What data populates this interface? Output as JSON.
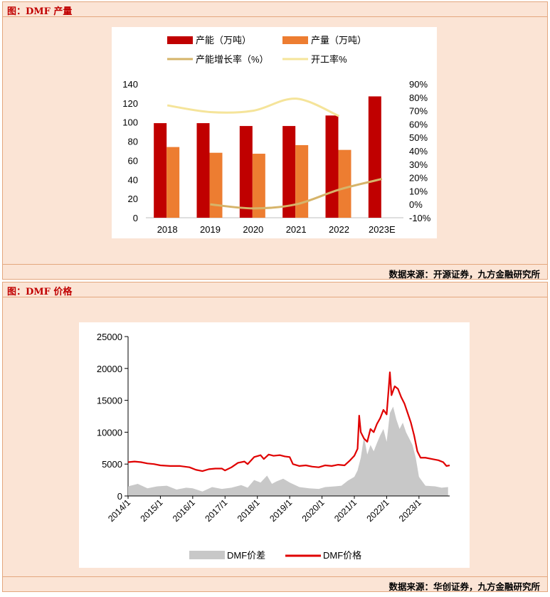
{
  "panels": [
    {
      "title": "图：DMF 产量",
      "source": "数据来源：开源证券，九方金融研究所"
    },
    {
      "title": "图：DMF 价格",
      "source": "数据来源：华创证券，九方金融研究所"
    }
  ],
  "chart_data": [
    {
      "type": "bar",
      "categories": [
        "2018",
        "2019",
        "2020",
        "2021",
        "2022",
        "2023E"
      ],
      "series": [
        {
          "name": "产能（万吨）",
          "kind": "bar",
          "axis": "left",
          "color": "#c00000",
          "values": [
            99,
            99,
            96,
            96,
            107,
            127
          ]
        },
        {
          "name": "产量（万吨）",
          "kind": "bar",
          "axis": "left",
          "color": "#ed7d31",
          "values": [
            74,
            68,
            67,
            76,
            71,
            null
          ]
        },
        {
          "name": "产能增长率（%）",
          "kind": "line",
          "axis": "right",
          "color": "#d6b46a",
          "values": [
            null,
            0,
            -3,
            0,
            11,
            19
          ]
        },
        {
          "name": "开工率%",
          "kind": "line",
          "axis": "right",
          "color": "#f5e49a",
          "values": [
            74,
            69,
            70,
            79,
            66,
            null
          ]
        }
      ],
      "left_axis": {
        "min": 0,
        "max": 140,
        "ticks": [
          "0",
          "20",
          "40",
          "60",
          "80",
          "100",
          "120",
          "140"
        ]
      },
      "right_axis": {
        "min": -10,
        "max": 90,
        "ticks": [
          "-10%",
          "0%",
          "10%",
          "20%",
          "30%",
          "40%",
          "50%",
          "60%",
          "70%",
          "80%",
          "90%"
        ]
      },
      "grid": false,
      "legend": "top"
    },
    {
      "type": "area",
      "x_ticks": [
        "2014/1",
        "2015/1",
        "2016/1",
        "2017/1",
        "2018/1",
        "2019/1",
        "2020/1",
        "2021/1",
        "2022/1",
        "2023/1"
      ],
      "y_axis": {
        "min": 0,
        "max": 25000,
        "ticks": [
          "0",
          "5000",
          "10000",
          "15000",
          "20000",
          "25000"
        ]
      },
      "series": [
        {
          "name": "DMF价差",
          "kind": "area",
          "color": "#c8c8c8",
          "points": [
            [
              2014.0,
              1500
            ],
            [
              2014.3,
              1900
            ],
            [
              2014.6,
              1200
            ],
            [
              2014.9,
              1500
            ],
            [
              2015.2,
              1600
            ],
            [
              2015.5,
              1000
            ],
            [
              2015.8,
              1300
            ],
            [
              2016.0,
              1200
            ],
            [
              2016.3,
              700
            ],
            [
              2016.6,
              1400
            ],
            [
              2016.9,
              1100
            ],
            [
              2017.2,
              1300
            ],
            [
              2017.5,
              1700
            ],
            [
              2017.7,
              1300
            ],
            [
              2017.9,
              2500
            ],
            [
              2018.1,
              2100
            ],
            [
              2018.3,
              3200
            ],
            [
              2018.45,
              1900
            ],
            [
              2018.6,
              2300
            ],
            [
              2018.8,
              2700
            ],
            [
              2019.0,
              2100
            ],
            [
              2019.3,
              1400
            ],
            [
              2019.6,
              1200
            ],
            [
              2019.9,
              1100
            ],
            [
              2020.1,
              1400
            ],
            [
              2020.4,
              1500
            ],
            [
              2020.6,
              1600
            ],
            [
              2020.8,
              2400
            ],
            [
              2021.0,
              3000
            ],
            [
              2021.1,
              4000
            ],
            [
              2021.2,
              6000
            ],
            [
              2021.3,
              9300
            ],
            [
              2021.4,
              6500
            ],
            [
              2021.5,
              8000
            ],
            [
              2021.6,
              7000
            ],
            [
              2021.7,
              8300
            ],
            [
              2021.8,
              9500
            ],
            [
              2021.9,
              10500
            ],
            [
              2022.0,
              8500
            ],
            [
              2022.1,
              13000
            ],
            [
              2022.2,
              14000
            ],
            [
              2022.3,
              12000
            ],
            [
              2022.4,
              10500
            ],
            [
              2022.5,
              11500
            ],
            [
              2022.6,
              10000
            ],
            [
              2022.7,
              9000
            ],
            [
              2022.8,
              8000
            ],
            [
              2022.9,
              6000
            ],
            [
              2023.0,
              3000
            ],
            [
              2023.2,
              1600
            ],
            [
              2023.5,
              1500
            ],
            [
              2023.7,
              1300
            ],
            [
              2023.9,
              1400
            ]
          ]
        },
        {
          "name": "DMF价格",
          "kind": "line",
          "color": "#e00000",
          "points": [
            [
              2014.0,
              5300
            ],
            [
              2014.2,
              5400
            ],
            [
              2014.4,
              5300
            ],
            [
              2014.6,
              5100
            ],
            [
              2014.8,
              5000
            ],
            [
              2015.0,
              4800
            ],
            [
              2015.3,
              4700
            ],
            [
              2015.6,
              4700
            ],
            [
              2015.9,
              4500
            ],
            [
              2016.1,
              4100
            ],
            [
              2016.3,
              3900
            ],
            [
              2016.5,
              4200
            ],
            [
              2016.7,
              4300
            ],
            [
              2016.9,
              4300
            ],
            [
              2017.0,
              4000
            ],
            [
              2017.2,
              4500
            ],
            [
              2017.4,
              5200
            ],
            [
              2017.6,
              5400
            ],
            [
              2017.7,
              5000
            ],
            [
              2017.9,
              6100
            ],
            [
              2018.1,
              6400
            ],
            [
              2018.2,
              5800
            ],
            [
              2018.35,
              6500
            ],
            [
              2018.5,
              6300
            ],
            [
              2018.7,
              6400
            ],
            [
              2018.85,
              6200
            ],
            [
              2019.0,
              6100
            ],
            [
              2019.1,
              5000
            ],
            [
              2019.3,
              4700
            ],
            [
              2019.5,
              4800
            ],
            [
              2019.7,
              4600
            ],
            [
              2019.9,
              4500
            ],
            [
              2020.1,
              4800
            ],
            [
              2020.3,
              4700
            ],
            [
              2020.5,
              4900
            ],
            [
              2020.7,
              4800
            ],
            [
              2020.85,
              5500
            ],
            [
              2021.0,
              6300
            ],
            [
              2021.1,
              7400
            ],
            [
              2021.15,
              12600
            ],
            [
              2021.2,
              10000
            ],
            [
              2021.3,
              9000
            ],
            [
              2021.4,
              8500
            ],
            [
              2021.5,
              10500
            ],
            [
              2021.6,
              10000
            ],
            [
              2021.7,
              11300
            ],
            [
              2021.8,
              12200
            ],
            [
              2021.9,
              13500
            ],
            [
              2022.0,
              12800
            ],
            [
              2022.05,
              16000
            ],
            [
              2022.1,
              19400
            ],
            [
              2022.15,
              15800
            ],
            [
              2022.25,
              17200
            ],
            [
              2022.35,
              16800
            ],
            [
              2022.45,
              15500
            ],
            [
              2022.55,
              14500
            ],
            [
              2022.65,
              13000
            ],
            [
              2022.75,
              11500
            ],
            [
              2022.85,
              9500
            ],
            [
              2022.95,
              7000
            ],
            [
              2023.05,
              6000
            ],
            [
              2023.2,
              6000
            ],
            [
              2023.4,
              5800
            ],
            [
              2023.6,
              5600
            ],
            [
              2023.75,
              5300
            ],
            [
              2023.85,
              4700
            ],
            [
              2023.95,
              4800
            ]
          ]
        }
      ],
      "grid": false,
      "legend": "bottom"
    }
  ]
}
